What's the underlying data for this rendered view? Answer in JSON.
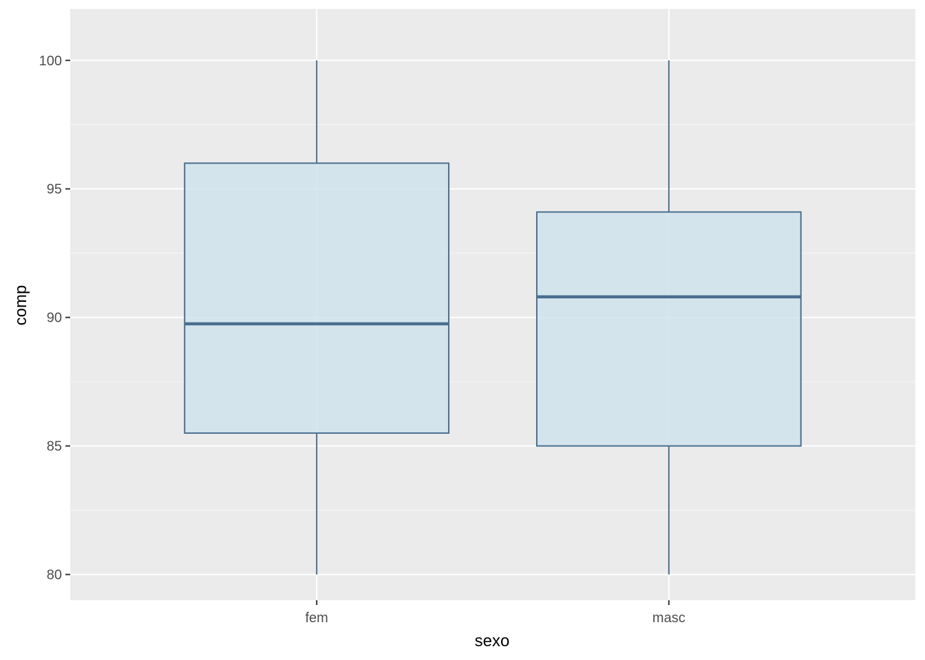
{
  "chart_data": {
    "type": "box",
    "xlabel": "sexo",
    "ylabel": "comp",
    "categories": [
      "fem",
      "masc"
    ],
    "boxes": [
      {
        "category": "fem",
        "min": 80,
        "q1": 85.5,
        "median": 89.75,
        "q3": 96,
        "max": 100
      },
      {
        "category": "masc",
        "min": 80,
        "q1": 85,
        "median": 90.8,
        "q3": 94.1,
        "max": 100
      }
    ],
    "ylim": [
      79,
      102
    ],
    "yticks": [
      80,
      85,
      90,
      95,
      100
    ],
    "grid": true,
    "legend": "none",
    "colors": {
      "panel": "#ebebeb",
      "grid_major": "#ffffff",
      "grid_minor": "#f5f5f5",
      "box_fill": "#cde2ec",
      "box_line": "#4a6e8e"
    }
  }
}
